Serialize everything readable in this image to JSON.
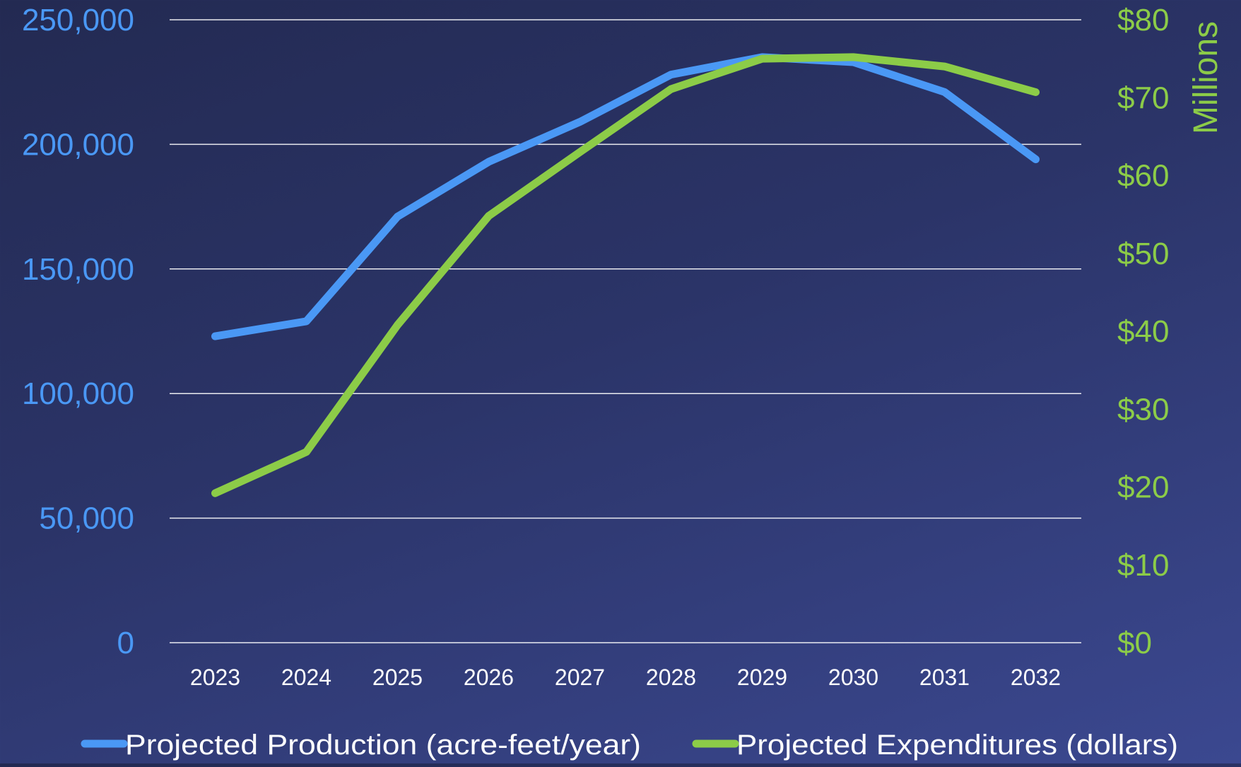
{
  "chart_data": {
    "type": "line",
    "categories": [
      "2023",
      "2024",
      "2025",
      "2026",
      "2027",
      "2028",
      "2029",
      "2030",
      "2031",
      "2032"
    ],
    "series": [
      {
        "name": "Projected Production (acre-feet/year)",
        "axis": "left",
        "color": "#4a98f5",
        "values": [
          123000,
          129000,
          171000,
          193000,
          209000,
          228000,
          235000,
          233000,
          221000,
          194000
        ]
      },
      {
        "name": "Projected Expenditures (dollars)",
        "axis": "right",
        "color": "#8ccc48",
        "values": [
          19.2,
          24.5,
          40.8,
          54.8,
          63.0,
          71.1,
          75.0,
          75.2,
          74.0,
          70.7
        ]
      }
    ],
    "left_axis": {
      "ylim": [
        0,
        250000
      ],
      "ticks": [
        "0",
        "50,000",
        "100,000",
        "150,000",
        "200,000",
        "250,000"
      ],
      "color": "#4a98f5"
    },
    "right_axis": {
      "ylim": [
        0,
        80
      ],
      "ticks": [
        "$0",
        "$10",
        "$20",
        "$30",
        "$40",
        "$50",
        "$60",
        "$70",
        "$80"
      ],
      "unit_label": "Millions",
      "color": "#8ccc48"
    },
    "grid": true,
    "legend_position": "bottom"
  }
}
